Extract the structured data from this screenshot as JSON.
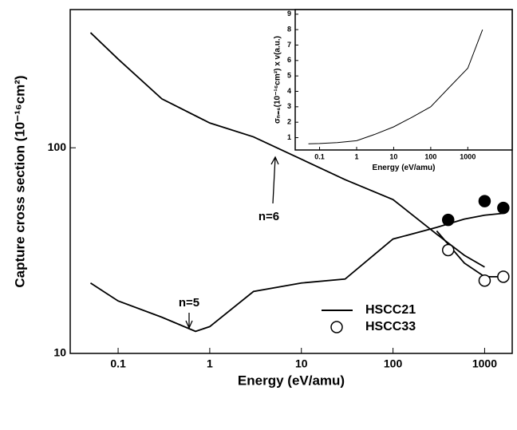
{
  "chart_data": [
    {
      "type": "line",
      "xlabel": "Energy (eV/amu)",
      "ylabel": "Capture cross section (10⁻¹⁶cm²)",
      "xscale": "log",
      "yscale": "log",
      "xlim": [
        0.03,
        2000
      ],
      "ylim": [
        10,
        470
      ],
      "xticks": [
        0.1,
        1,
        10,
        100,
        1000
      ],
      "yticks": [
        10,
        100
      ],
      "legend": "lower right",
      "annotations": [
        "n=5",
        "n=6"
      ],
      "series": [
        {
          "name": "HSCC21",
          "style": "line",
          "color": "#000000",
          "x": [
            0.05,
            0.1,
            0.3,
            1,
            3,
            10,
            30,
            100,
            300,
            600,
            1000
          ],
          "values": [
            363,
            270,
            173,
            132,
            113,
            88,
            70,
            56,
            38,
            30,
            26.3
          ]
        },
        {
          "style": "line",
          "color": "#000000",
          "x": [
            0.05,
            0.1,
            0.3,
            0.7,
            1,
            3,
            10,
            30,
            100,
            300,
            600,
            1000,
            1600
          ],
          "values": [
            22,
            18,
            15,
            12.8,
            13.5,
            20,
            22,
            23,
            36,
            41,
            45,
            47,
            48
          ]
        },
        {
          "style": "line",
          "color": "#000000",
          "x": [
            300,
            600,
            1000,
            1600
          ],
          "values": [
            39.4,
            27.5,
            23.6,
            23.6
          ]
        },
        {
          "style": "filled-marker",
          "color": "#000000",
          "x": [
            400,
            1000,
            1600
          ],
          "values": [
            44.6,
            55,
            51
          ]
        },
        {
          "name": "HSCC33",
          "style": "open-marker",
          "color": "#000000",
          "x": [
            400,
            1000,
            1600
          ],
          "values": [
            31.8,
            22.6,
            23.6
          ]
        }
      ]
    },
    {
      "type": "line",
      "xlabel": "Energy (eV/amu)",
      "ylabel": "σₙ₌₆(10⁻¹⁶cm²) x v(a.u.)",
      "xscale": "log",
      "xlim": [
        0.022,
        15800
      ],
      "ylim": [
        0.2,
        9.3
      ],
      "xticks": [
        0.1,
        1,
        10,
        100,
        1000
      ],
      "yticks": [
        1,
        2,
        3,
        4,
        5,
        6,
        7,
        8,
        9
      ],
      "series": [
        {
          "style": "line",
          "color": "#000000",
          "x": [
            0.05,
            0.1,
            0.3,
            1,
            3,
            10,
            30,
            100,
            300,
            1000,
            2500
          ],
          "values": [
            0.6,
            0.62,
            0.68,
            0.8,
            1.2,
            1.7,
            2.3,
            3.0,
            4.2,
            5.5,
            8
          ]
        }
      ]
    }
  ]
}
